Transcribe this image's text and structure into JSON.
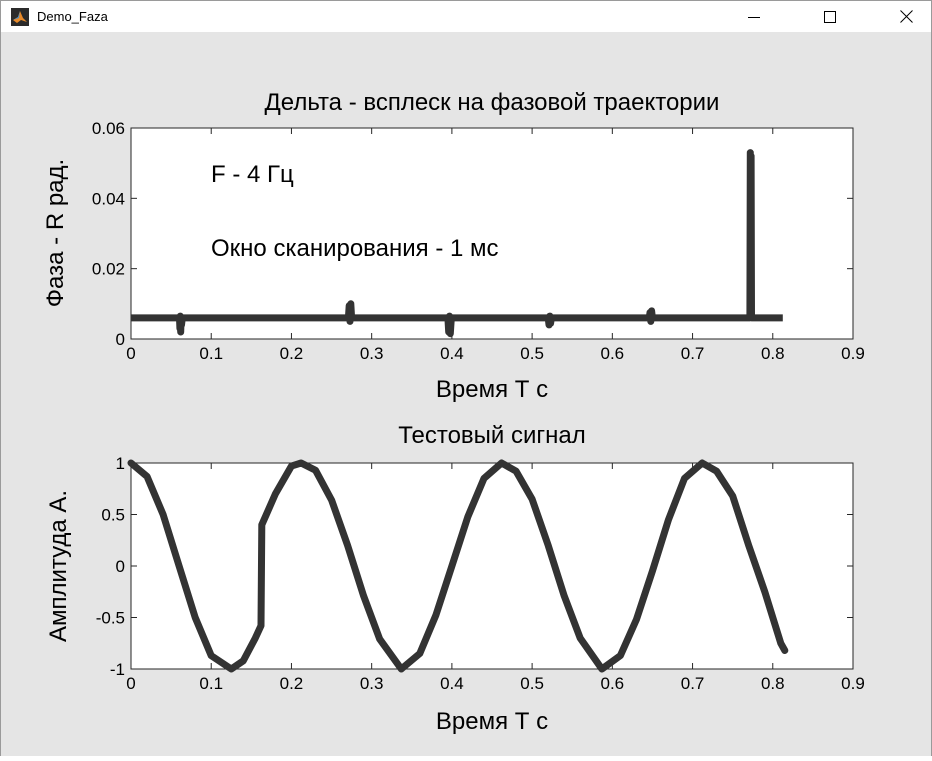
{
  "window": {
    "title": "Demo_Faza",
    "app_icon": "matlab-logo-icon",
    "controls": [
      "minimize-icon",
      "maximize-icon",
      "close-icon"
    ]
  },
  "colors": {
    "background": "#e5e5e5",
    "axes": "#ffffff",
    "line": "#333333"
  },
  "chart_data": [
    {
      "type": "line",
      "title": "Дельта - всплеск на фазовой траектории",
      "xlabel": "Время Т с",
      "ylabel": "Фаза - R рад.",
      "xlim": [
        0,
        0.9
      ],
      "ylim": [
        0,
        0.06
      ],
      "xticks": [
        0,
        0.1,
        0.2,
        0.3,
        0.4,
        0.5,
        0.6,
        0.7,
        0.8,
        0.9
      ],
      "yticks": [
        0,
        0.02,
        0.04,
        0.06
      ],
      "xtick_labels": [
        "0",
        "0.1",
        "0.2",
        "0.3",
        "0.4",
        "0.5",
        "0.6",
        "0.7",
        "0.8",
        "0.9"
      ],
      "ytick_labels": [
        "0",
        "0.02",
        "0.04",
        "0.06"
      ],
      "grid": false,
      "annotations": [
        "F - 4 Гц",
        "Окно сканирования - 1 мс"
      ],
      "series": [
        {
          "x": [
            0,
            0.0605,
            0.061,
            0.0615,
            0.062,
            0.0625,
            0.063,
            0.064,
            0.271,
            0.272,
            0.273,
            0.274,
            0.275,
            0.276,
            0.395,
            0.396,
            0.397,
            0.398,
            0.399,
            0.4,
            0.401,
            0.52,
            0.521,
            0.522,
            0.523,
            0.524,
            0.525,
            0.646,
            0.647,
            0.648,
            0.649,
            0.65,
            0.651,
            0.7715,
            0.772,
            0.7725,
            0.773,
            0.7735,
            0.774,
            0.8125
          ],
          "y": [
            0.006,
            0.006,
            0.003,
            0.0065,
            0.002,
            0.006,
            0.004,
            0.006,
            0.006,
            0.0095,
            0.005,
            0.01,
            0.006,
            0.006,
            0.006,
            0.002,
            0.0065,
            0.0015,
            0.005,
            0.006,
            0.006,
            0.006,
            0.004,
            0.0065,
            0.0045,
            0.006,
            0.006,
            0.006,
            0.0075,
            0.005,
            0.008,
            0.006,
            0.006,
            0.006,
            0.053,
            0.028,
            0.052,
            0.006,
            0.006,
            0.006
          ]
        }
      ]
    },
    {
      "type": "line",
      "title": "Тестовый сигнал",
      "xlabel": "Время Т с",
      "ylabel": "Амплитуда А.",
      "xlim": [
        0,
        0.9
      ],
      "ylim": [
        -1,
        1
      ],
      "xticks": [
        0,
        0.1,
        0.2,
        0.3,
        0.4,
        0.5,
        0.6,
        0.7,
        0.8,
        0.9
      ],
      "yticks": [
        -1,
        -0.5,
        0,
        0.5,
        1
      ],
      "xtick_labels": [
        "0",
        "0.1",
        "0.2",
        "0.3",
        "0.4",
        "0.5",
        "0.6",
        "0.7",
        "0.8",
        "0.9"
      ],
      "ytick_labels": [
        "-1",
        "-0.5",
        "0",
        "0.5",
        "1"
      ],
      "grid": false,
      "series": [
        {
          "x": [
            0,
            0.02,
            0.04,
            0.06,
            0.08,
            0.1,
            0.125,
            0.14,
            0.155,
            0.162,
            0.163,
            0.18,
            0.2,
            0.212,
            0.23,
            0.25,
            0.27,
            0.29,
            0.31,
            0.337,
            0.36,
            0.38,
            0.4,
            0.42,
            0.44,
            0.462,
            0.48,
            0.5,
            0.52,
            0.54,
            0.56,
            0.587,
            0.61,
            0.63,
            0.65,
            0.67,
            0.69,
            0.712,
            0.73,
            0.75,
            0.77,
            0.79,
            0.81,
            0.815
          ],
          "y": [
            1,
            0.87,
            0.5,
            0,
            -0.5,
            -0.87,
            -1,
            -0.92,
            -0.7,
            -0.58,
            0.4,
            0.7,
            0.97,
            1,
            0.93,
            0.64,
            0.2,
            -0.29,
            -0.71,
            -1,
            -0.85,
            -0.48,
            0,
            0.48,
            0.85,
            1,
            0.92,
            0.65,
            0.2,
            -0.29,
            -0.7,
            -1,
            -0.87,
            -0.52,
            -0.05,
            0.45,
            0.85,
            1,
            0.92,
            0.68,
            0.2,
            -0.25,
            -0.75,
            -0.82
          ]
        }
      ]
    }
  ]
}
